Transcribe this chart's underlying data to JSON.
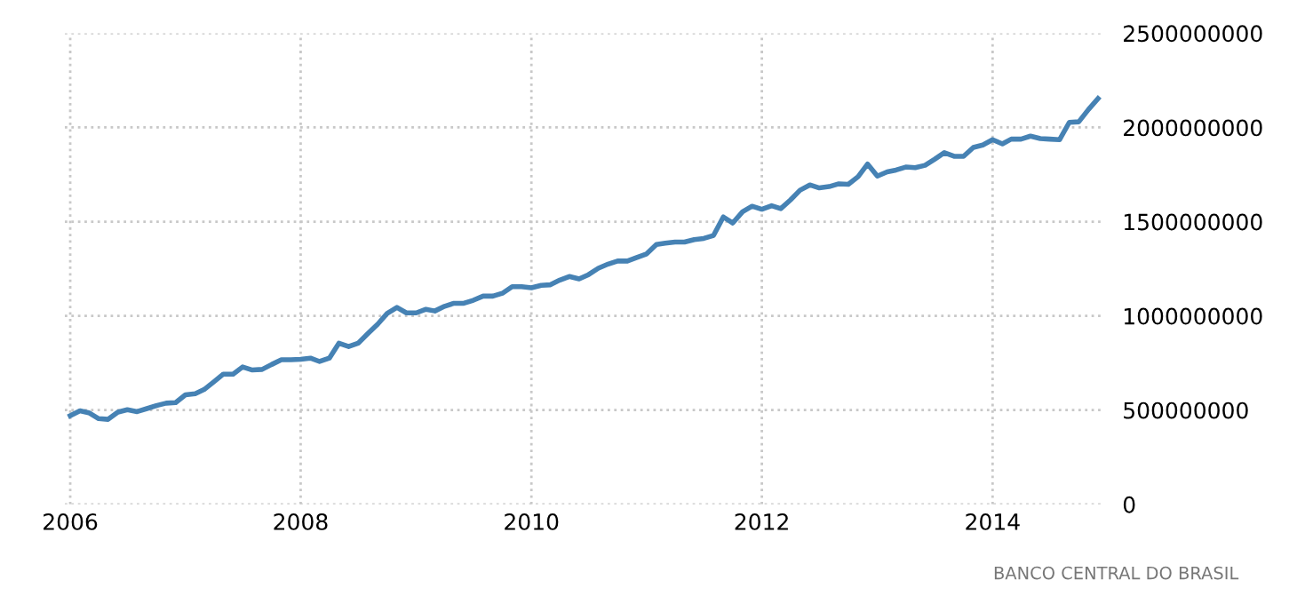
{
  "chart_data": {
    "type": "line",
    "x": [
      "2006-01",
      "2006-02",
      "2006-03",
      "2006-04",
      "2006-05",
      "2006-06",
      "2006-07",
      "2006-08",
      "2006-09",
      "2006-10",
      "2006-11",
      "2006-12",
      "2007-01",
      "2007-02",
      "2007-03",
      "2007-04",
      "2007-05",
      "2007-06",
      "2007-07",
      "2007-08",
      "2007-09",
      "2007-10",
      "2007-11",
      "2007-12",
      "2008-01",
      "2008-02",
      "2008-03",
      "2008-04",
      "2008-05",
      "2008-06",
      "2008-07",
      "2008-08",
      "2008-09",
      "2008-10",
      "2008-11",
      "2008-12",
      "2009-01",
      "2009-02",
      "2009-03",
      "2009-04",
      "2009-05",
      "2009-06",
      "2009-07",
      "2009-08",
      "2009-09",
      "2009-10",
      "2009-11",
      "2009-12",
      "2010-01",
      "2010-02",
      "2010-03",
      "2010-04",
      "2010-05",
      "2010-06",
      "2010-07",
      "2010-08",
      "2010-09",
      "2010-10",
      "2010-11",
      "2010-12",
      "2011-01",
      "2011-02",
      "2011-03",
      "2011-04",
      "2011-05",
      "2011-06",
      "2011-07",
      "2011-08",
      "2011-09",
      "2011-10",
      "2011-11",
      "2011-12",
      "2012-01",
      "2012-02",
      "2012-03",
      "2012-04",
      "2012-05",
      "2012-06",
      "2012-07",
      "2012-08",
      "2012-09",
      "2012-10",
      "2012-11",
      "2012-12",
      "2013-01",
      "2013-02",
      "2013-03",
      "2013-04",
      "2013-05",
      "2013-06",
      "2013-07",
      "2013-08",
      "2013-09",
      "2013-10",
      "2013-11",
      "2013-12",
      "2014-01",
      "2014-02",
      "2014-03",
      "2014-04",
      "2014-05",
      "2014-06",
      "2014-07",
      "2014-08",
      "2014-09",
      "2014-10",
      "2014-11",
      "2014-12"
    ],
    "series": [
      {
        "color": "#4682b4",
        "values": [
          470000000,
          496000000,
          486000000,
          455000000,
          451000000,
          489000000,
          502000000,
          492000000,
          508000000,
          524000000,
          537000000,
          540000000,
          581000000,
          587000000,
          609000000,
          650000000,
          691000000,
          691000000,
          729000000,
          713000000,
          716000000,
          742000000,
          767000000,
          767000000,
          770000000,
          776000000,
          758000000,
          776000000,
          855000000,
          837000000,
          855000000,
          906000000,
          956000000,
          1013000000,
          1045000000,
          1016000000,
          1016000000,
          1035000000,
          1026000000,
          1051000000,
          1067000000,
          1067000000,
          1083000000,
          1105000000,
          1105000000,
          1120000000,
          1155000000,
          1155000000,
          1149000000,
          1162000000,
          1165000000,
          1190000000,
          1209000000,
          1196000000,
          1219000000,
          1253000000,
          1275000000,
          1291000000,
          1291000000,
          1310000000,
          1329000000,
          1379000000,
          1386000000,
          1392000000,
          1392000000,
          1405000000,
          1411000000,
          1427000000,
          1525000000,
          1493000000,
          1553000000,
          1582000000,
          1566000000,
          1585000000,
          1569000000,
          1616000000,
          1667000000,
          1695000000,
          1679000000,
          1686000000,
          1701000000,
          1698000000,
          1739000000,
          1806000000,
          1742000000,
          1764000000,
          1774000000,
          1790000000,
          1787000000,
          1799000000,
          1831000000,
          1866000000,
          1847000000,
          1847000000,
          1894000000,
          1907000000,
          1935000000,
          1913000000,
          1938000000,
          1938000000,
          1954000000,
          1941000000,
          1938000000,
          1935000000,
          2027000000,
          2030000000,
          2096000000,
          2153000000
        ]
      }
    ],
    "xlim": [
      "2005-12-15",
      "2014-12-15"
    ],
    "xticks": [
      {
        "value": "2006-01-01",
        "label": "2006"
      },
      {
        "value": "2008-01-01",
        "label": "2008"
      },
      {
        "value": "2010-01-01",
        "label": "2010"
      },
      {
        "value": "2012-01-01",
        "label": "2012"
      },
      {
        "value": "2014-01-01",
        "label": "2014"
      }
    ],
    "ylim": [
      0,
      2500000000
    ],
    "yticks": [
      0,
      500000000,
      1000000000,
      1500000000,
      2000000000,
      2500000000
    ],
    "grid": true,
    "line_style": "solid",
    "annotations": [
      "BANCO CENTRAL DO BRASIL"
    ]
  }
}
